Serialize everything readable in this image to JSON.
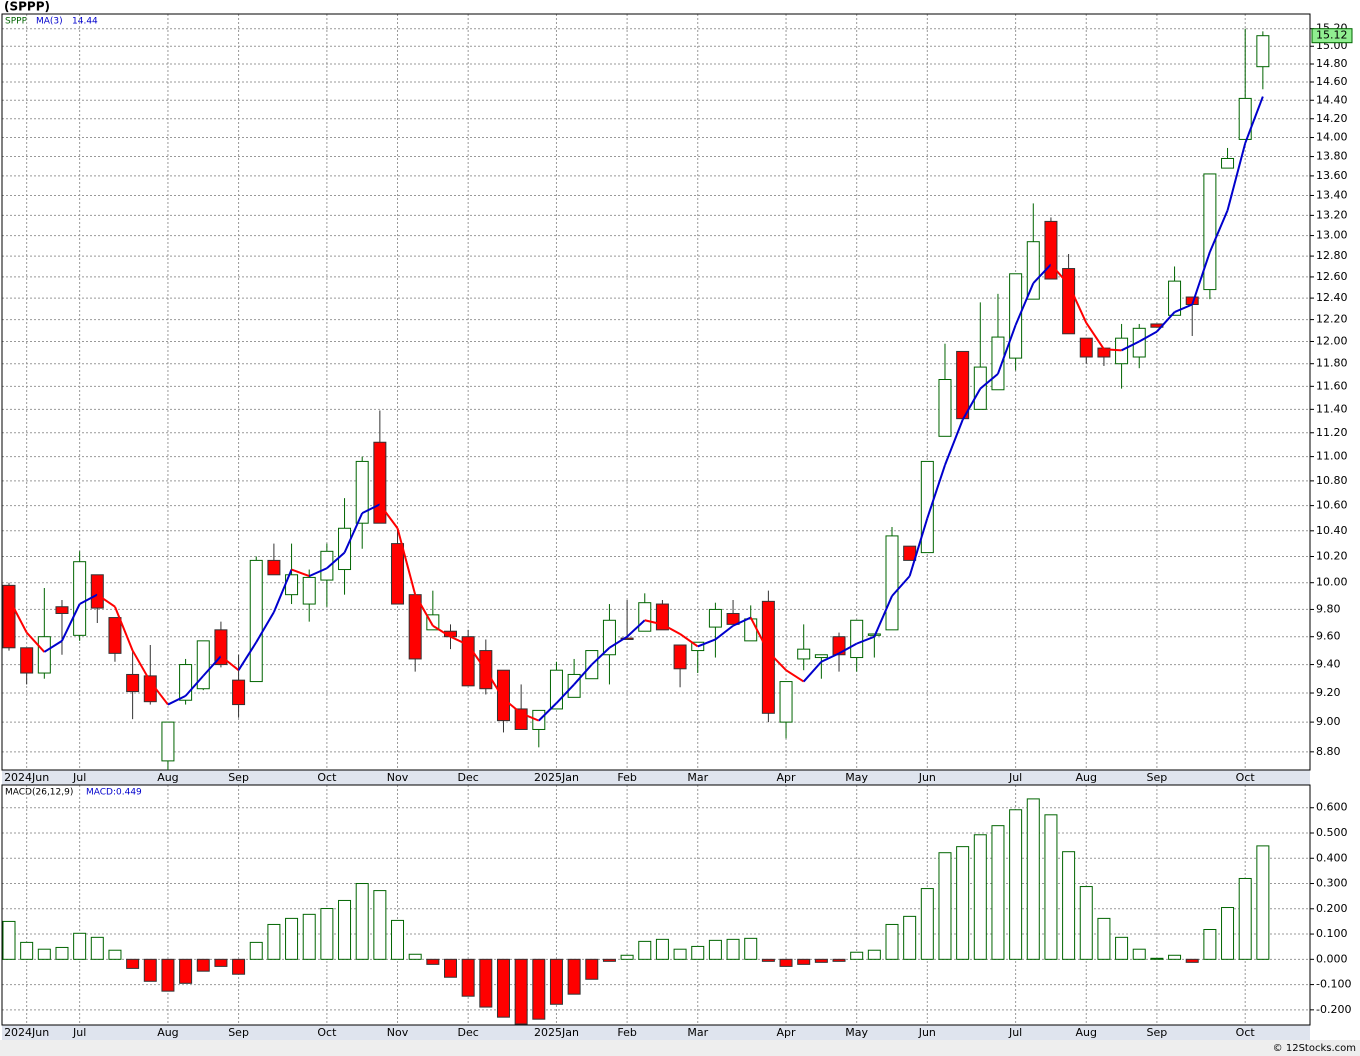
{
  "chart_data": [
    {
      "type": "candlestick",
      "title": "(SPPP)",
      "name": "SPPP",
      "log": true,
      "grid": true,
      "up_color": "#006400",
      "down_color": "#ff0000",
      "categories": [
        null,
        "2024Jun",
        null,
        null,
        "Jul",
        null,
        null,
        null,
        null,
        "Aug",
        null,
        null,
        null,
        "Sep",
        null,
        null,
        null,
        null,
        "Oct",
        null,
        null,
        null,
        "Nov",
        null,
        null,
        null,
        "Dec",
        null,
        null,
        null,
        null,
        "2025Jan",
        null,
        null,
        null,
        "Feb",
        null,
        null,
        null,
        "Mar",
        null,
        null,
        null,
        null,
        "Apr",
        null,
        null,
        null,
        "May",
        null,
        null,
        null,
        "Jun",
        null,
        null,
        null,
        null,
        "Jul",
        null,
        null,
        null,
        "Aug",
        null,
        null,
        null,
        "Sep",
        null,
        null,
        null,
        null,
        "Oct",
        null
      ],
      "open": [
        9.98,
        9.52,
        9.34,
        9.82,
        9.61,
        10.06,
        9.74,
        9.33,
        9.32,
        8.74,
        9.15,
        9.23,
        9.65,
        9.29,
        9.28,
        10.17,
        9.91,
        9.84,
        10.02,
        10.1,
        10.46,
        11.12,
        10.3,
        9.91,
        9.65,
        9.64,
        9.6,
        9.5,
        9.36,
        9.09,
        8.95,
        9.09,
        9.17,
        9.3,
        9.47,
        9.59,
        9.64,
        9.84,
        9.54,
        9.5,
        9.67,
        9.77,
        9.57,
        9.86,
        9.0,
        9.44,
        9.45,
        9.6,
        9.45,
        9.61,
        9.65,
        10.28,
        10.23,
        11.17,
        11.91,
        11.4,
        11.57,
        11.85,
        12.39,
        13.14,
        12.68,
        12.03,
        11.94,
        11.8,
        11.86,
        12.16,
        12.24,
        12.41,
        12.48,
        13.68,
        13.98,
        14.77
      ],
      "high": [
        10.0,
        9.52,
        9.96,
        9.87,
        10.24,
        10.06,
        9.74,
        9.5,
        9.54,
        9.0,
        9.44,
        9.57,
        9.71,
        9.47,
        10.2,
        10.3,
        10.3,
        10.1,
        10.3,
        10.66,
        11.0,
        11.39,
        10.41,
        9.91,
        9.94,
        9.69,
        9.65,
        9.58,
        9.36,
        9.26,
        9.08,
        9.42,
        9.44,
        9.5,
        9.84,
        9.87,
        9.92,
        9.87,
        9.54,
        9.56,
        9.85,
        9.87,
        9.83,
        9.94,
        9.28,
        9.69,
        9.47,
        9.63,
        9.72,
        9.62,
        10.43,
        10.28,
        10.96,
        11.98,
        11.91,
        12.36,
        12.44,
        12.63,
        13.32,
        13.18,
        12.82,
        12.03,
        11.94,
        12.16,
        12.16,
        12.16,
        12.7,
        12.41,
        13.62,
        13.89,
        15.2,
        15.17
      ],
      "low": [
        9.5,
        9.26,
        9.3,
        9.47,
        9.57,
        9.7,
        9.42,
        9.02,
        9.12,
        8.68,
        9.12,
        9.22,
        9.38,
        9.03,
        9.28,
        10.06,
        9.84,
        9.71,
        9.82,
        9.91,
        10.26,
        10.46,
        9.84,
        9.35,
        9.65,
        9.51,
        9.25,
        9.19,
        8.93,
        8.95,
        8.83,
        9.09,
        9.17,
        9.3,
        9.26,
        9.58,
        9.64,
        9.65,
        9.24,
        9.34,
        9.45,
        9.69,
        9.57,
        9.0,
        8.89,
        9.36,
        9.3,
        9.35,
        9.35,
        9.45,
        9.65,
        10.17,
        10.23,
        11.17,
        11.32,
        11.4,
        11.57,
        11.74,
        12.39,
        12.58,
        12.07,
        11.8,
        11.78,
        11.58,
        11.76,
        12.13,
        12.24,
        12.05,
        12.39,
        13.68,
        13.98,
        14.52
      ],
      "close": [
        9.52,
        9.34,
        9.6,
        9.77,
        10.16,
        9.81,
        9.48,
        9.21,
        9.14,
        9.0,
        9.4,
        9.57,
        9.4,
        9.12,
        10.17,
        10.06,
        10.06,
        10.04,
        10.24,
        10.42,
        10.96,
        10.46,
        9.84,
        9.44,
        9.76,
        9.6,
        9.25,
        9.23,
        9.01,
        8.95,
        9.08,
        9.36,
        9.33,
        9.5,
        9.72,
        9.58,
        9.85,
        9.65,
        9.37,
        9.56,
        9.8,
        9.69,
        9.73,
        9.06,
        9.28,
        9.51,
        9.47,
        9.47,
        9.72,
        9.62,
        10.36,
        10.17,
        10.96,
        11.66,
        11.32,
        11.77,
        12.04,
        12.63,
        12.94,
        12.58,
        12.07,
        11.86,
        11.86,
        12.03,
        12.12,
        12.13,
        12.56,
        12.34,
        13.62,
        13.78,
        14.42,
        15.12
      ],
      "series": [
        {
          "name": "MA(3)",
          "color": "#0000cc",
          "down_color": "#ff0000",
          "values": [
            9.88,
            9.63,
            9.49,
            9.57,
            9.84,
            9.91,
            9.82,
            9.5,
            9.28,
            9.12,
            9.18,
            9.32,
            9.46,
            9.36,
            9.56,
            9.78,
            10.1,
            10.05,
            10.11,
            10.23,
            10.54,
            10.61,
            10.42,
            9.91,
            9.68,
            9.6,
            9.54,
            9.36,
            9.16,
            9.06,
            9.01,
            9.13,
            9.26,
            9.4,
            9.52,
            9.6,
            9.72,
            9.69,
            9.62,
            9.53,
            9.58,
            9.68,
            9.74,
            9.49,
            9.36,
            9.28,
            9.42,
            9.48,
            9.55,
            9.6,
            9.9,
            10.05,
            10.5,
            10.93,
            11.31,
            11.58,
            11.71,
            12.15,
            12.54,
            12.72,
            12.53,
            12.17,
            11.93,
            11.92,
            12.0,
            12.09,
            12.27,
            12.34,
            12.84,
            13.25,
            13.94,
            14.44
          ]
        }
      ],
      "last_price_color": "#90ee90",
      "ylim": [
        8.68,
        15.37
      ],
      "yticks": [
        {
          "value": 8.8,
          "label": "8.80"
        },
        {
          "value": 9.0,
          "label": "9.00"
        },
        {
          "value": 9.2,
          "label": "9.20"
        },
        {
          "value": 9.4,
          "label": "9.40"
        },
        {
          "value": 9.6,
          "label": "9.60"
        },
        {
          "value": 9.8,
          "label": "9.80"
        },
        {
          "value": 10.0,
          "label": "10.00"
        },
        {
          "value": 10.2,
          "label": "10.20"
        },
        {
          "value": 10.4,
          "label": "10.40"
        },
        {
          "value": 10.6,
          "label": "10.60"
        },
        {
          "value": 10.8,
          "label": "10.80"
        },
        {
          "value": 11.0,
          "label": "11.00"
        },
        {
          "value": 11.2,
          "label": "11.20"
        },
        {
          "value": 11.4,
          "label": "11.40"
        },
        {
          "value": 11.6,
          "label": "11.60"
        },
        {
          "value": 11.8,
          "label": "11.80"
        },
        {
          "value": 12.0,
          "label": "12.00"
        },
        {
          "value": 12.2,
          "label": "12.20"
        },
        {
          "value": 12.4,
          "label": "12.40"
        },
        {
          "value": 12.6,
          "label": "12.60"
        },
        {
          "value": 12.8,
          "label": "12.80"
        },
        {
          "value": 13.0,
          "label": "13.00"
        },
        {
          "value": 13.2,
          "label": "13.20"
        },
        {
          "value": 13.4,
          "label": "13.40"
        },
        {
          "value": 13.6,
          "label": "13.60"
        },
        {
          "value": 13.8,
          "label": "13.80"
        },
        {
          "value": 14.0,
          "label": "14.00"
        },
        {
          "value": 14.2,
          "label": "14.20"
        },
        {
          "value": 14.4,
          "label": "14.40"
        },
        {
          "value": 14.6,
          "label": "14.60"
        },
        {
          "value": 14.8,
          "label": "14.80"
        },
        {
          "value": 15.0,
          "label": "15.00"
        },
        {
          "value": 15.2,
          "label": "15.20"
        }
      ]
    },
    {
      "type": "bar",
      "grid": true,
      "name": "MACD(26,12,9)",
      "last_label": "MACD:0.449",
      "color": "#006400",
      "down_color": "#ff0000",
      "values": [
        0.15,
        0.067,
        0.04,
        0.047,
        0.103,
        0.087,
        0.036,
        -0.036,
        -0.087,
        -0.126,
        -0.095,
        -0.047,
        -0.028,
        -0.059,
        0.067,
        0.138,
        0.162,
        0.178,
        0.201,
        0.233,
        0.3,
        0.272,
        0.154,
        0.02,
        -0.02,
        -0.071,
        -0.146,
        -0.189,
        -0.229,
        -0.256,
        -0.237,
        -0.178,
        -0.138,
        -0.079,
        -0.008,
        0.016,
        0.071,
        0.079,
        0.04,
        0.051,
        0.075,
        0.079,
        0.083,
        -0.008,
        -0.028,
        -0.02,
        -0.012,
        -0.008,
        0.028,
        0.036,
        0.138,
        0.17,
        0.28,
        0.422,
        0.446,
        0.493,
        0.529,
        0.592,
        0.635,
        0.572,
        0.426,
        0.288,
        0.162,
        0.087,
        0.04,
        0.004,
        0.016,
        -0.012,
        0.118,
        0.205,
        0.32,
        0.449
      ],
      "ylim": [
        -0.26,
        0.69
      ],
      "yticks": [
        {
          "value": -0.2,
          "label": "-0.200"
        },
        {
          "value": -0.1,
          "label": "-0.100"
        },
        {
          "value": 0,
          "label": "0.000"
        },
        {
          "value": 0.1,
          "label": "0.100"
        },
        {
          "value": 0.2,
          "label": "0.200"
        },
        {
          "value": 0.3,
          "label": "0.300"
        },
        {
          "value": 0.4,
          "label": "0.400"
        },
        {
          "value": 0.5,
          "label": "0.500"
        },
        {
          "value": 0.6,
          "label": "0.600"
        }
      ]
    }
  ],
  "footer": "© 12Stocks.com"
}
